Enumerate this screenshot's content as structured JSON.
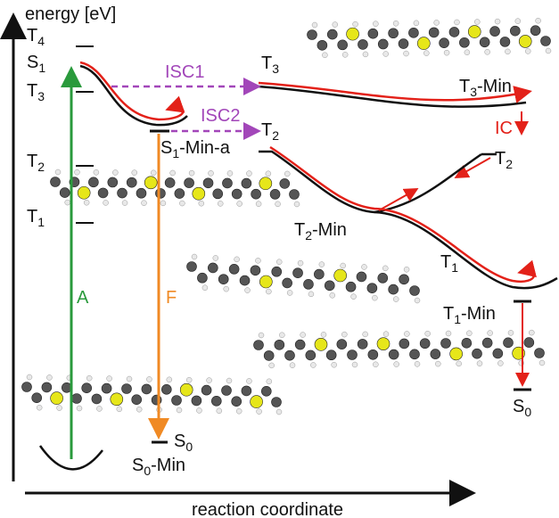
{
  "axis": {
    "y_label": "energy [eV]",
    "x_label": "reaction coordinate"
  },
  "labels": [
    {
      "base": "T",
      "sub": "4"
    },
    {
      "base": "S",
      "sub": "1"
    },
    {
      "base": "T",
      "sub": "3"
    },
    {
      "base": "T",
      "sub": "2"
    },
    {
      "base": "T",
      "sub": "1"
    },
    {
      "base": "T",
      "sub": "3"
    },
    {
      "base": "T",
      "sub": "3",
      "suffix": "-Min"
    },
    {
      "base": "T",
      "sub": "2"
    },
    {
      "base": "S",
      "sub": "1",
      "suffix": "-Min-a"
    },
    {
      "base": "T",
      "sub": "2"
    },
    {
      "base": "T",
      "sub": "2",
      "suffix": "-Min"
    },
    {
      "base": "T",
      "sub": "1"
    },
    {
      "base": "T",
      "sub": "1",
      "suffix": "-Min"
    },
    {
      "base": "S",
      "sub": "0"
    },
    {
      "base": "S",
      "sub": "0"
    },
    {
      "base": "S",
      "sub": "0",
      "suffix": "-Min"
    }
  ],
  "transitions": [
    {
      "label": "ISC1"
    },
    {
      "label": "ISC2"
    },
    {
      "label": "IC"
    },
    {
      "label": "A"
    },
    {
      "label": "F"
    }
  ]
}
